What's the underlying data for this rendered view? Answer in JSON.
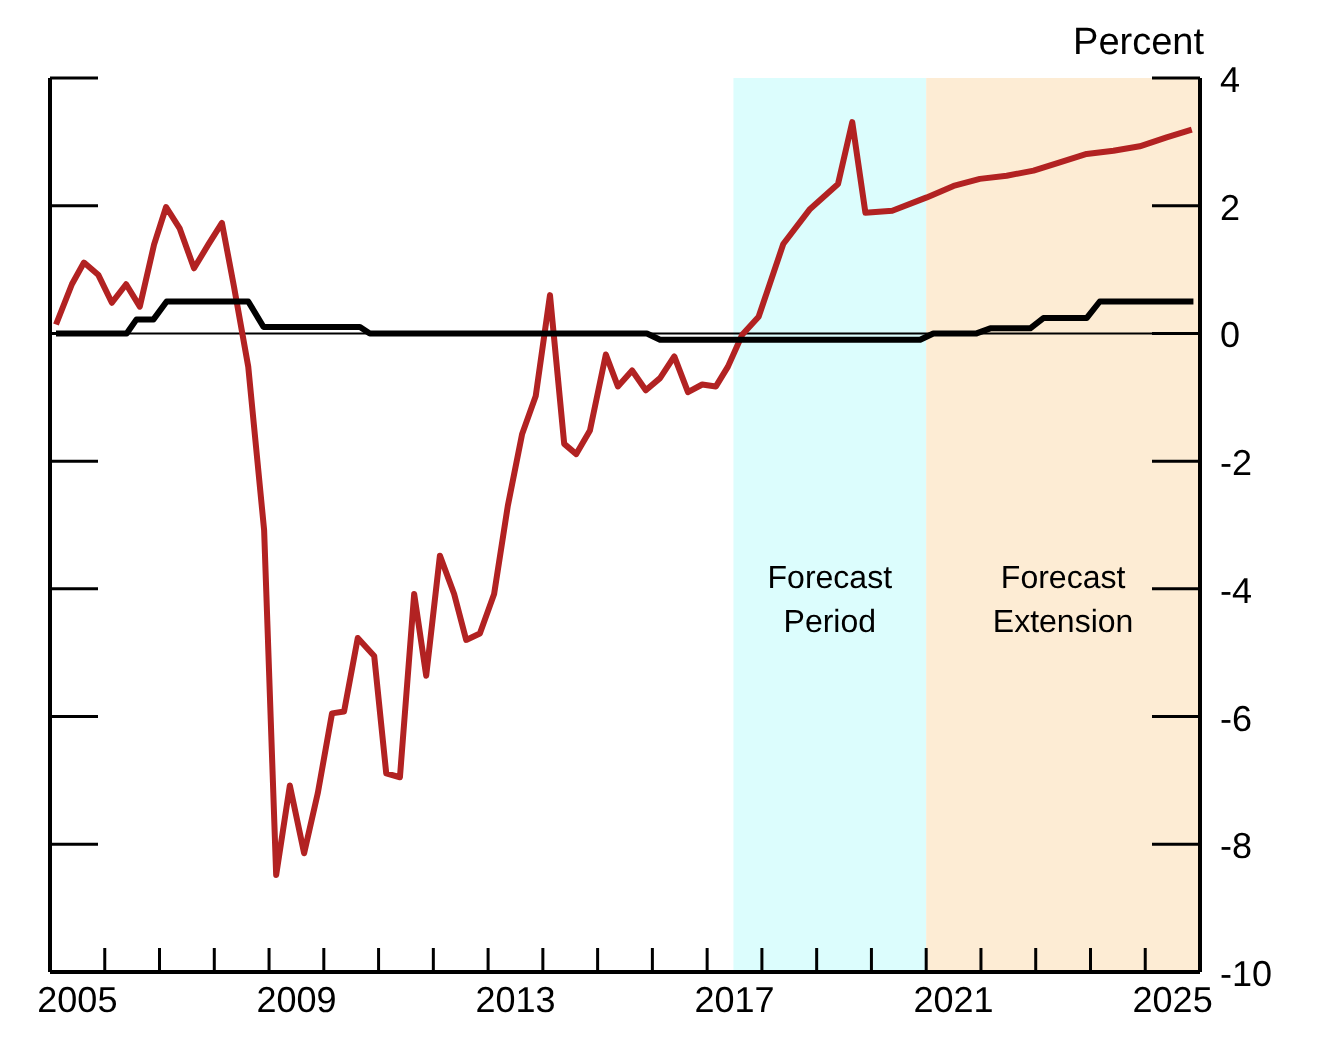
{
  "chart_data": {
    "type": "line",
    "ylabel": "Percent",
    "xlim": [
      2005,
      2026
    ],
    "xticks": [
      {
        "value": 2005,
        "label": null
      },
      {
        "value": 2006,
        "label": null
      },
      {
        "value": 2007,
        "label": null
      },
      {
        "value": 2008,
        "label": null
      },
      {
        "value": 2009,
        "label": null
      },
      {
        "value": 2010,
        "label": null
      },
      {
        "value": 2011,
        "label": null
      },
      {
        "value": 2012,
        "label": null
      },
      {
        "value": 2013,
        "label": null
      },
      {
        "value": 2014,
        "label": null
      },
      {
        "value": 2015,
        "label": null
      },
      {
        "value": 2016,
        "label": null
      },
      {
        "value": 2017,
        "label": null
      },
      {
        "value": 2018,
        "label": null
      },
      {
        "value": 2019,
        "label": null
      },
      {
        "value": 2020,
        "label": null
      },
      {
        "value": 2021,
        "label": null
      },
      {
        "value": 2022,
        "label": null
      },
      {
        "value": 2023,
        "label": null
      },
      {
        "value": 2024,
        "label": null
      },
      {
        "value": 2025,
        "label": null
      },
      {
        "value": 2026,
        "label": null
      },
      {
        "value": 2005.5,
        "label": "2005"
      },
      {
        "value": 2009.5,
        "label": "2009"
      },
      {
        "value": 2013.5,
        "label": "2013"
      },
      {
        "value": 2017.5,
        "label": "2017"
      },
      {
        "value": 2021.5,
        "label": "2021"
      },
      {
        "value": 2025.5,
        "label": "2025"
      }
    ],
    "ylim": [
      -10,
      4
    ],
    "yticks": [
      4,
      2,
      0,
      -2,
      -4,
      -6,
      -8,
      -10
    ],
    "bands": [
      {
        "axis": "x",
        "from": 2017.48,
        "to": 2021,
        "label": "Forecast Period",
        "color": "#dcfdfd"
      },
      {
        "axis": "x",
        "from": 2021,
        "to": 2026,
        "label": "Forecast Extension",
        "color": "#fdecd4"
      }
    ],
    "ref_lines": [
      {
        "axis": "y",
        "value": 0,
        "color": "#000000"
      }
    ],
    "series": [
      {
        "color": "#b22222",
        "x": [
          2005.11,
          2005.4,
          2005.62,
          2005.88,
          2006.13,
          2006.39,
          2006.64,
          2006.9,
          2007.12,
          2007.37,
          2007.63,
          2007.89,
          2008.14,
          2008.36,
          2008.62,
          2008.91,
          2009.13,
          2009.38,
          2009.64,
          2009.89,
          2010.15,
          2010.37,
          2010.62,
          2010.92,
          2011.14,
          2011.39,
          2011.65,
          2011.87,
          2012.12,
          2012.38,
          2012.6,
          2012.85,
          2013.11,
          2013.36,
          2013.62,
          2013.87,
          2014.13,
          2014.39,
          2014.61,
          2014.86,
          2015.15,
          2015.37,
          2015.63,
          2015.88,
          2016.14,
          2016.4,
          2016.65,
          2016.91,
          2017.16,
          2017.38,
          2017.64,
          2017.94,
          2018.39,
          2018.88,
          2019.39,
          2019.65,
          2019.89,
          2020.38,
          2021.01,
          2021.5,
          2021.98,
          2022.47,
          2022.96,
          2023.44,
          2023.93,
          2024.42,
          2024.9,
          2025.39,
          2025.85
        ],
        "values": [
          0.14,
          0.77,
          1.11,
          0.92,
          0.48,
          0.77,
          0.42,
          1.39,
          1.98,
          1.64,
          1.02,
          1.39,
          1.73,
          0.73,
          -0.52,
          -3.08,
          -8.48,
          -7.08,
          -8.14,
          -7.2,
          -5.95,
          -5.92,
          -4.77,
          -5.05,
          -6.89,
          -6.95,
          -4.08,
          -5.36,
          -3.48,
          -4.08,
          -4.8,
          -4.7,
          -4.08,
          -2.7,
          -1.58,
          -0.98,
          0.6,
          -1.73,
          -1.89,
          -1.52,
          -0.33,
          -0.83,
          -0.58,
          -0.89,
          -0.7,
          -0.36,
          -0.92,
          -0.8,
          -0.83,
          -0.52,
          -0.02,
          0.26,
          1.4,
          1.95,
          2.34,
          3.31,
          1.89,
          1.92,
          2.13,
          2.31,
          2.42,
          2.47,
          2.55,
          2.68,
          2.81,
          2.86,
          2.93,
          3.07,
          3.19
        ]
      },
      {
        "color": "#000000",
        "x": [
          2005.11,
          2006.4,
          2006.58,
          2006.89,
          2007.13,
          2008.62,
          2008.9,
          2010.66,
          2010.84,
          2015.9,
          2016.14,
          2020.89,
          2021.13,
          2021.92,
          2022.17,
          2022.9,
          2023.14,
          2023.93,
          2024.17,
          2025.88
        ],
        "values": [
          0,
          0,
          0.22,
          0.22,
          0.5,
          0.5,
          0.1,
          0.1,
          0,
          0,
          -0.1,
          -0.1,
          0,
          0,
          0.08,
          0.08,
          0.24,
          0.24,
          0.5,
          0.5
        ]
      }
    ]
  }
}
